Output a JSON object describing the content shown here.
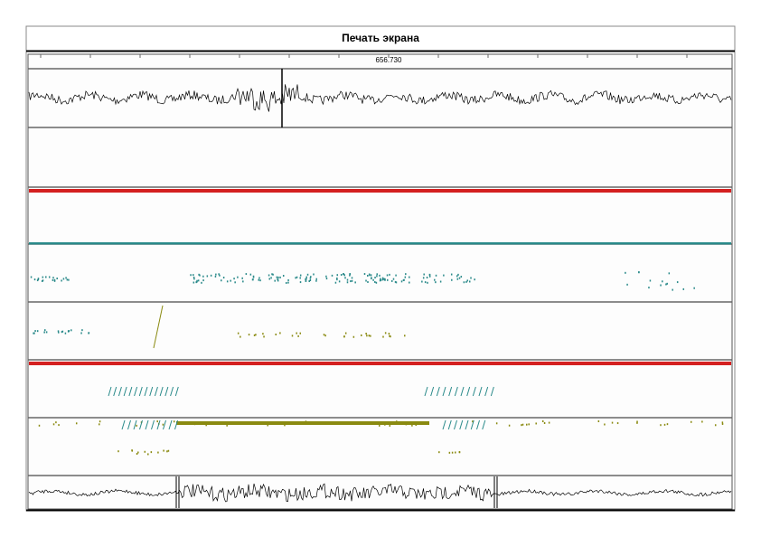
{
  "header": {
    "title": "Печать экрана"
  },
  "ruler": {
    "label": "656.730"
  }
}
